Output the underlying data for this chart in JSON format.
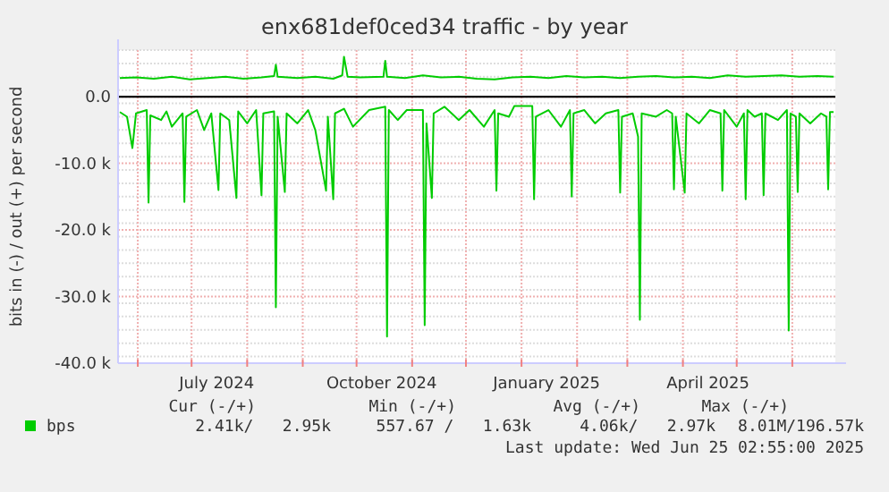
{
  "chart_data": {
    "type": "line",
    "title": "enx681def0ced34 traffic - by year",
    "ylabel": "bits in (-) / out (+) per second",
    "xlim": [
      "2024-05-21",
      "2025-06-25"
    ],
    "xticks": [
      {
        "value": "2024-06-01",
        "label": null
      },
      {
        "value": "2024-07-01",
        "label": null
      },
      {
        "value": "2024-07-15",
        "label": "July 2024"
      },
      {
        "value": "2024-08-01",
        "label": null
      },
      {
        "value": "2024-09-01",
        "label": null
      },
      {
        "value": "2024-10-01",
        "label": null
      },
      {
        "value": "2024-10-15",
        "label": "October 2024"
      },
      {
        "value": "2024-11-01",
        "label": null
      },
      {
        "value": "2024-12-01",
        "label": null
      },
      {
        "value": "2025-01-01",
        "label": null
      },
      {
        "value": "2025-01-15",
        "label": "January 2025"
      },
      {
        "value": "2025-02-01",
        "label": null
      },
      {
        "value": "2025-03-01",
        "label": null
      },
      {
        "value": "2025-04-01",
        "label": null
      },
      {
        "value": "2025-04-15",
        "label": "April 2025"
      },
      {
        "value": "2025-05-01",
        "label": null
      },
      {
        "value": "2025-06-01",
        "label": null
      }
    ],
    "ylim": [
      -40000,
      7000
    ],
    "yticks": [
      {
        "value": 0,
        "label": "0.0"
      },
      {
        "value": -10000,
        "label": "-10.0 k"
      },
      {
        "value": -20000,
        "label": "-20.0 k"
      },
      {
        "value": -30000,
        "label": "-30.0 k"
      },
      {
        "value": -40000,
        "label": "-40.0 k"
      }
    ],
    "grid": true,
    "legend": "bottom",
    "line_style": "solid",
    "ref_lines": [
      {
        "axis": "y",
        "value": 0,
        "color": "#000000"
      }
    ],
    "series": [
      {
        "name": "bps",
        "color": "#00cc00",
        "x": [
          "2024-05-22",
          "2024-05-31",
          "2024-06-10",
          "2024-06-20",
          "2024-06-30",
          "2024-07-10",
          "2024-07-20",
          "2024-07-30",
          "2024-08-09",
          "2024-08-16",
          "2024-08-17",
          "2024-08-18",
          "2024-08-29",
          "2024-09-08",
          "2024-09-18",
          "2024-09-23",
          "2024-09-24",
          "2024-09-26",
          "2024-10-03",
          "2024-10-16",
          "2024-10-17",
          "2024-10-18",
          "2024-10-28",
          "2024-11-07",
          "2024-11-17",
          "2024-11-27",
          "2024-12-07",
          "2024-12-17",
          "2024-12-27",
          "2025-01-06",
          "2025-01-16",
          "2025-01-26",
          "2025-02-05",
          "2025-02-15",
          "2025-02-25",
          "2025-03-07",
          "2025-03-17",
          "2025-03-27",
          "2025-04-06",
          "2025-04-16",
          "2025-04-26",
          "2025-05-06",
          "2025-05-16",
          "2025-05-26",
          "2025-06-05",
          "2025-06-15",
          "2025-06-24"
        ],
        "values": [
          2800,
          2900,
          2700,
          3000,
          2600,
          2800,
          3000,
          2700,
          2900,
          3100,
          4800,
          3000,
          2800,
          3000,
          2700,
          3200,
          6000,
          3000,
          2900,
          3000,
          5400,
          3000,
          2800,
          3200,
          2900,
          3000,
          2700,
          2600,
          2900,
          3000,
          2800,
          3100,
          2900,
          3000,
          2800,
          3000,
          3100,
          2900,
          3000,
          2800,
          3200,
          3000,
          3100,
          3200,
          3000,
          3100,
          3000
        ]
      },
      {
        "color": "#00cc00",
        "x": [
          "2024-05-22",
          "2024-05-26",
          "2024-05-29",
          "2024-05-31",
          "2024-06-06",
          "2024-06-07",
          "2024-06-08",
          "2024-06-14",
          "2024-06-17",
          "2024-06-20",
          "2024-06-26",
          "2024-06-27",
          "2024-06-28",
          "2024-07-04",
          "2024-07-08",
          "2024-07-12",
          "2024-07-16",
          "2024-07-17",
          "2024-07-22",
          "2024-07-26",
          "2024-07-27",
          "2024-08-01",
          "2024-08-06",
          "2024-08-09",
          "2024-08-10",
          "2024-08-16",
          "2024-08-17",
          "2024-08-18",
          "2024-08-22",
          "2024-08-23",
          "2024-08-29",
          "2024-09-04",
          "2024-09-08",
          "2024-09-14",
          "2024-09-15",
          "2024-09-18",
          "2024-09-19",
          "2024-09-24",
          "2024-09-29",
          "2024-10-08",
          "2024-10-17",
          "2024-10-18",
          "2024-10-19",
          "2024-10-24",
          "2024-10-29",
          "2024-11-07",
          "2024-11-08",
          "2024-11-09",
          "2024-11-12",
          "2024-11-13",
          "2024-11-19",
          "2024-11-27",
          "2024-12-03",
          "2024-12-11",
          "2024-12-17",
          "2024-12-18",
          "2024-12-19",
          "2024-12-25",
          "2024-12-28",
          "2025-01-07",
          "2025-01-08",
          "2025-01-09",
          "2025-01-16",
          "2025-01-23",
          "2025-01-28",
          "2025-01-29",
          "2025-01-30",
          "2025-02-05",
          "2025-02-11",
          "2025-02-17",
          "2025-02-24",
          "2025-02-25",
          "2025-02-26",
          "2025-03-04",
          "2025-03-07",
          "2025-03-08",
          "2025-03-09",
          "2025-03-17",
          "2025-03-23",
          "2025-03-26",
          "2025-03-27",
          "2025-03-28",
          "2025-04-02",
          "2025-04-03",
          "2025-04-10",
          "2025-04-16",
          "2025-04-22",
          "2025-04-23",
          "2025-04-24",
          "2025-05-01",
          "2025-05-05",
          "2025-05-06",
          "2025-05-07",
          "2025-05-11",
          "2025-05-15",
          "2025-05-16",
          "2025-05-17",
          "2025-05-24",
          "2025-05-29",
          "2025-05-30",
          "2025-05-31",
          "2025-06-03",
          "2025-06-04",
          "2025-06-05",
          "2025-06-11",
          "2025-06-17",
          "2025-06-20",
          "2025-06-21",
          "2025-06-22",
          "2025-06-24"
        ],
        "values": [
          -2300,
          -3000,
          -7700,
          -2500,
          -2000,
          -15900,
          -2800,
          -3500,
          -2200,
          -4500,
          -2500,
          -15800,
          -3000,
          -2000,
          -5000,
          -2500,
          -14000,
          -2500,
          -3500,
          -15200,
          -2200,
          -4000,
          -2000,
          -14800,
          -2500,
          -2200,
          -31600,
          -3000,
          -14300,
          -2500,
          -4000,
          -2000,
          -5000,
          -14100,
          -3000,
          -15400,
          -2500,
          -1800,
          -4500,
          -2000,
          -1500,
          -36000,
          -2000,
          -3500,
          -2000,
          -2000,
          -34300,
          -4000,
          -15200,
          -2500,
          -1500,
          -3500,
          -2000,
          -4500,
          -2000,
          -14100,
          -2500,
          -3000,
          -1400,
          -1400,
          -15400,
          -3000,
          -2000,
          -4500,
          -2000,
          -15000,
          -2500,
          -2000,
          -4000,
          -2500,
          -2000,
          -14400,
          -3000,
          -2500,
          -6000,
          -33500,
          -2500,
          -3000,
          -2000,
          -2500,
          -13900,
          -3000,
          -14400,
          -2500,
          -4000,
          -2000,
          -2500,
          -14100,
          -2000,
          -4500,
          -2500,
          -15400,
          -2000,
          -3000,
          -2500,
          -14800,
          -2500,
          -3500,
          -2000,
          -35100,
          -2500,
          -3000,
          -14300,
          -2500,
          -4000,
          -2500,
          -3000,
          -13900,
          -2300,
          -2300
        ]
      }
    ],
    "annotations": [
      "Cur (-/+)",
      "Min (-/+)",
      "Avg (-/+)",
      "Max (-/+)",
      "2.41k/   2.95k",
      "557.67 /   1.63k",
      "4.06k/   2.97k",
      "8.01M/196.57k",
      "Last update: Wed Jun 25 02:55:00 2025"
    ]
  }
}
